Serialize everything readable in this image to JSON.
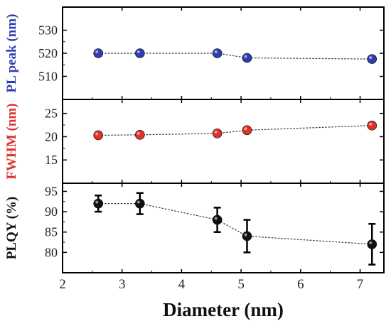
{
  "chart_data": [
    {
      "type": "line",
      "ylabel": "PL peak",
      "yunit": "(nm)",
      "ylim": [
        500,
        540
      ],
      "yticks": [
        510,
        520,
        530
      ],
      "series": [
        {
          "color": "#2f3db0",
          "x": [
            2.6,
            3.3,
            4.6,
            5.1,
            7.2
          ],
          "y": [
            520,
            520,
            520,
            518,
            517.5
          ]
        }
      ]
    },
    {
      "type": "line",
      "ylabel": "FWHM",
      "yunit": "(nm)",
      "ylim": [
        10,
        28
      ],
      "yticks": [
        15,
        20,
        25
      ],
      "series": [
        {
          "color": "#e0302c",
          "x": [
            2.6,
            3.3,
            4.6,
            5.1,
            7.2
          ],
          "y": [
            20.3,
            20.4,
            20.7,
            21.4,
            22.4
          ]
        }
      ]
    },
    {
      "type": "line",
      "ylabel": "PLQY (%)",
      "ylim": [
        75,
        97
      ],
      "yticks": [
        80,
        85,
        90,
        95
      ],
      "series": [
        {
          "color": "#111111",
          "x": [
            2.6,
            3.3,
            4.6,
            5.1,
            7.2
          ],
          "y": [
            92,
            92,
            88,
            84,
            82
          ],
          "err": [
            2,
            2.6,
            3,
            4,
            5
          ]
        }
      ]
    }
  ],
  "xaxis": {
    "label": "Diameter (nm)",
    "xlim": [
      2,
      7.4
    ],
    "ticks": [
      "2",
      "3",
      "4",
      "5",
      "6",
      "7"
    ]
  },
  "colors": {
    "blue_label": "#2f3db0",
    "red_label": "#e0302c",
    "black_label": "#111111",
    "line": "#333333"
  }
}
